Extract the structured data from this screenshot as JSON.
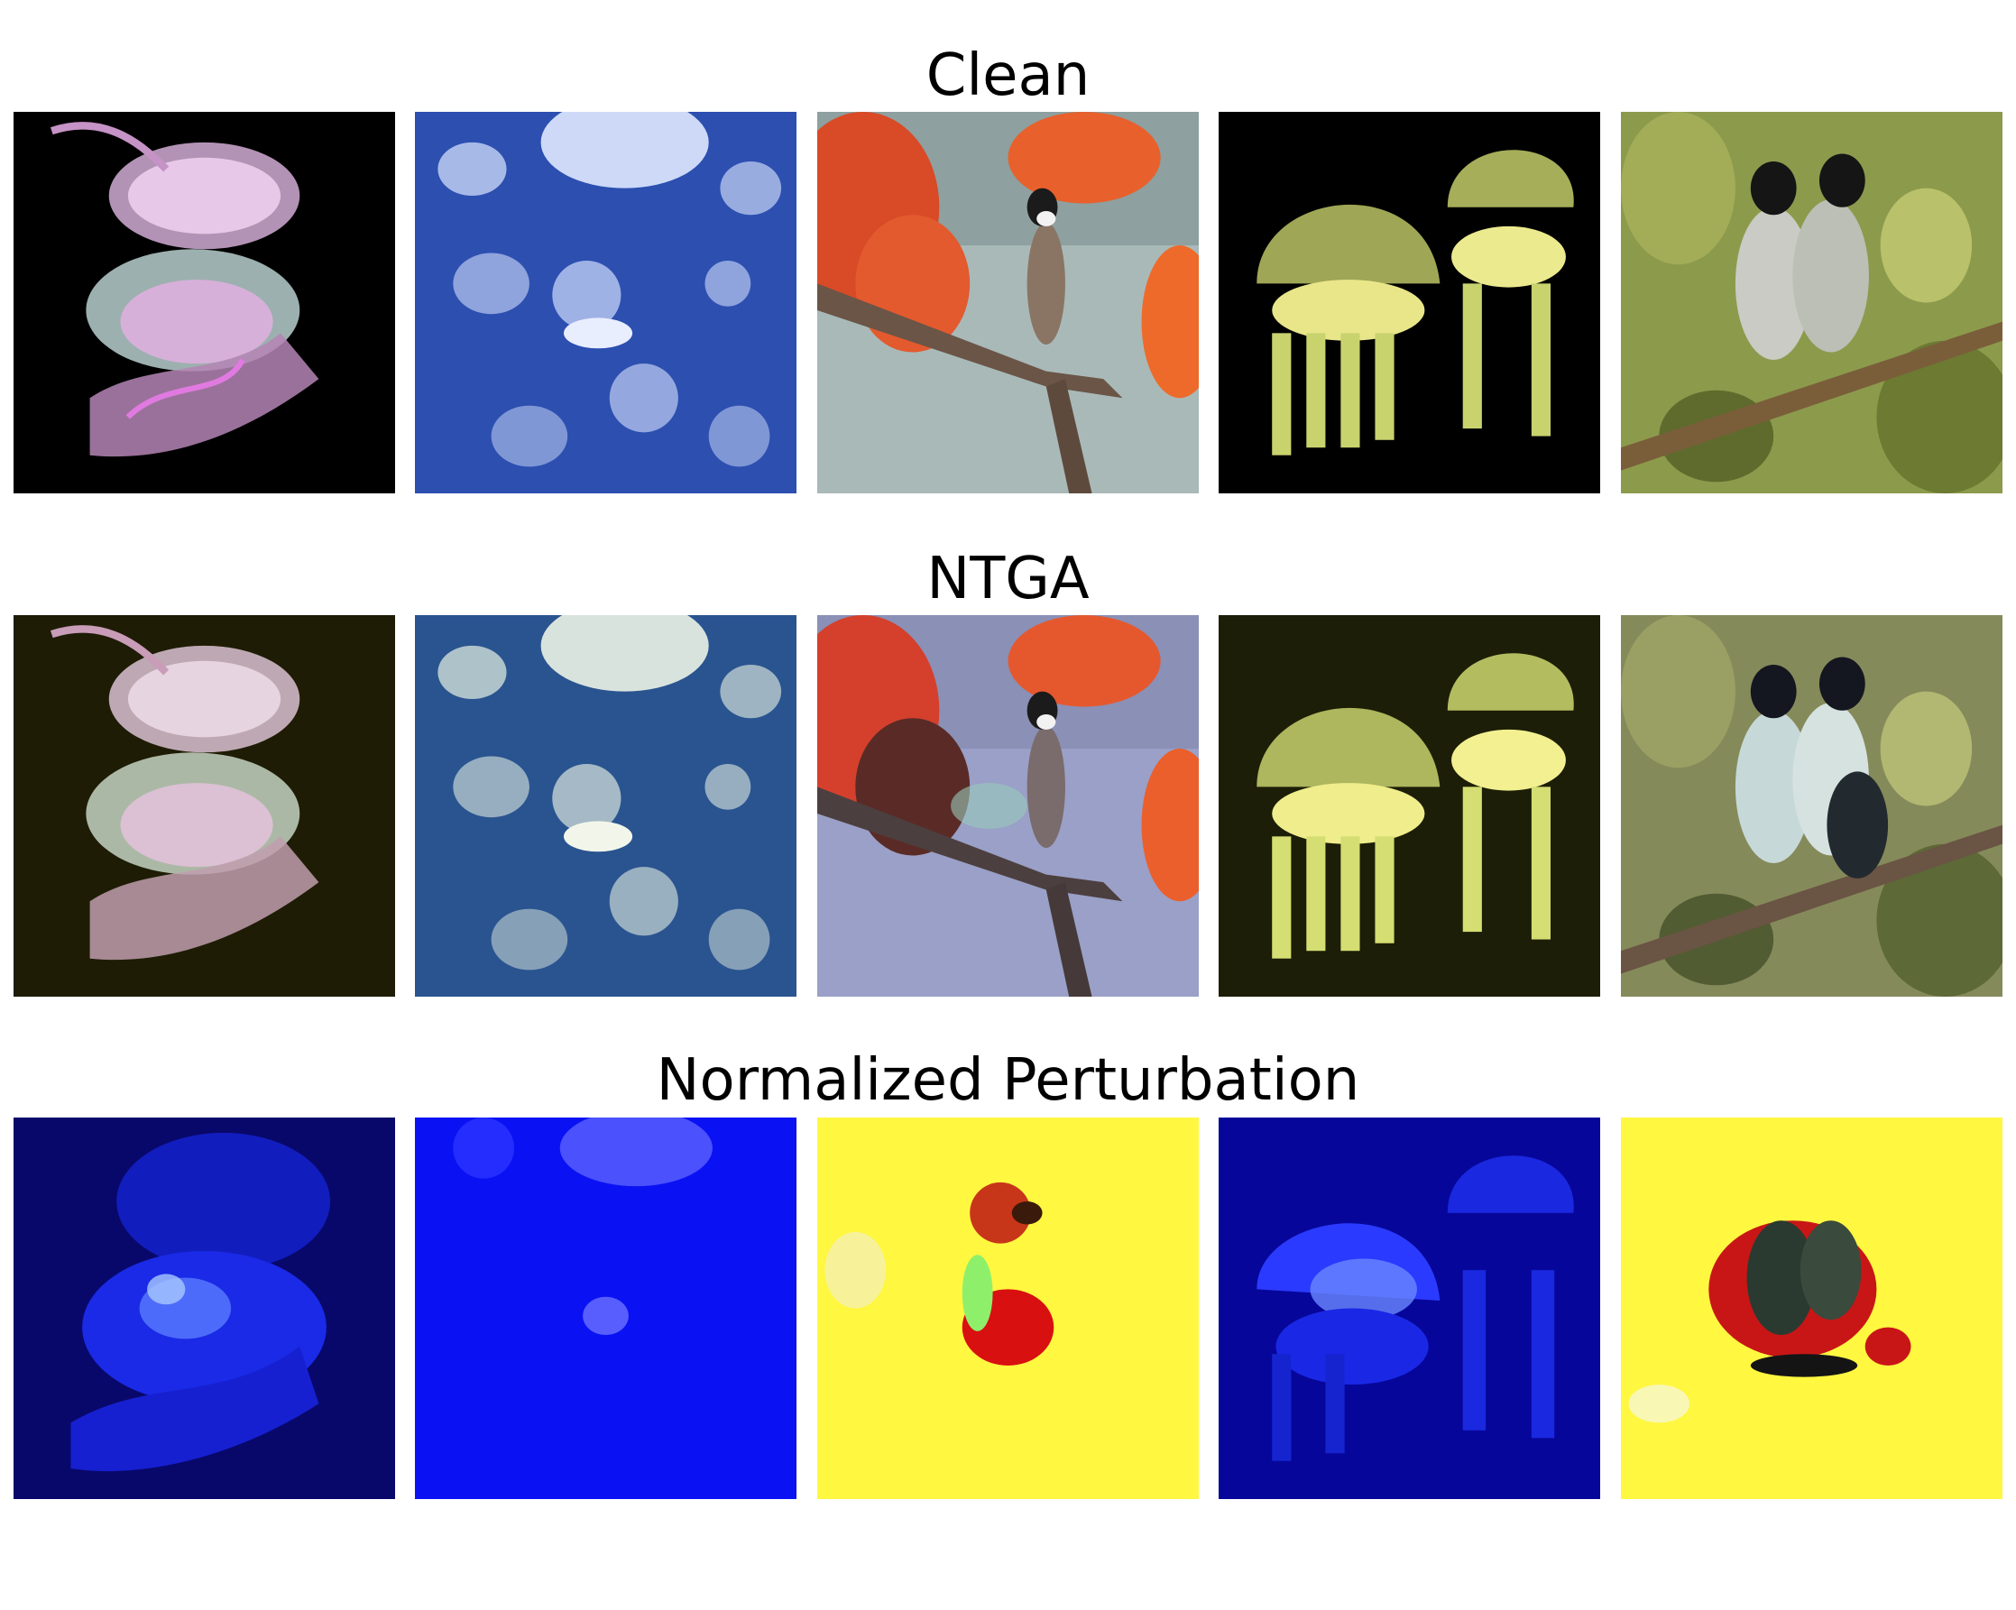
{
  "rows": [
    {
      "title": "Clean"
    },
    {
      "title": "NTGA"
    },
    {
      "title": "Normalized Perturbation"
    }
  ],
  "images": [
    [
      "jellyfish-pink",
      "moon-jellyfish",
      "bulbul-on-branch-orange-flowers",
      "spotted-jellyfish-pair",
      "two-bulbuls-in-foliage"
    ],
    [
      "jellyfish-pink",
      "moon-jellyfish",
      "bulbul-on-branch-orange-flowers",
      "spotted-jellyfish-pair",
      "two-bulbuls-in-foliage"
    ],
    [
      "perturbation-blue",
      "perturbation-blue",
      "perturbation-yellow",
      "perturbation-blue",
      "perturbation-yellow"
    ]
  ],
  "colors": {
    "perturbation_blue": "#0a1aff",
    "perturbation_yellow": "#fff740",
    "perturbation_red": "#d81010"
  }
}
